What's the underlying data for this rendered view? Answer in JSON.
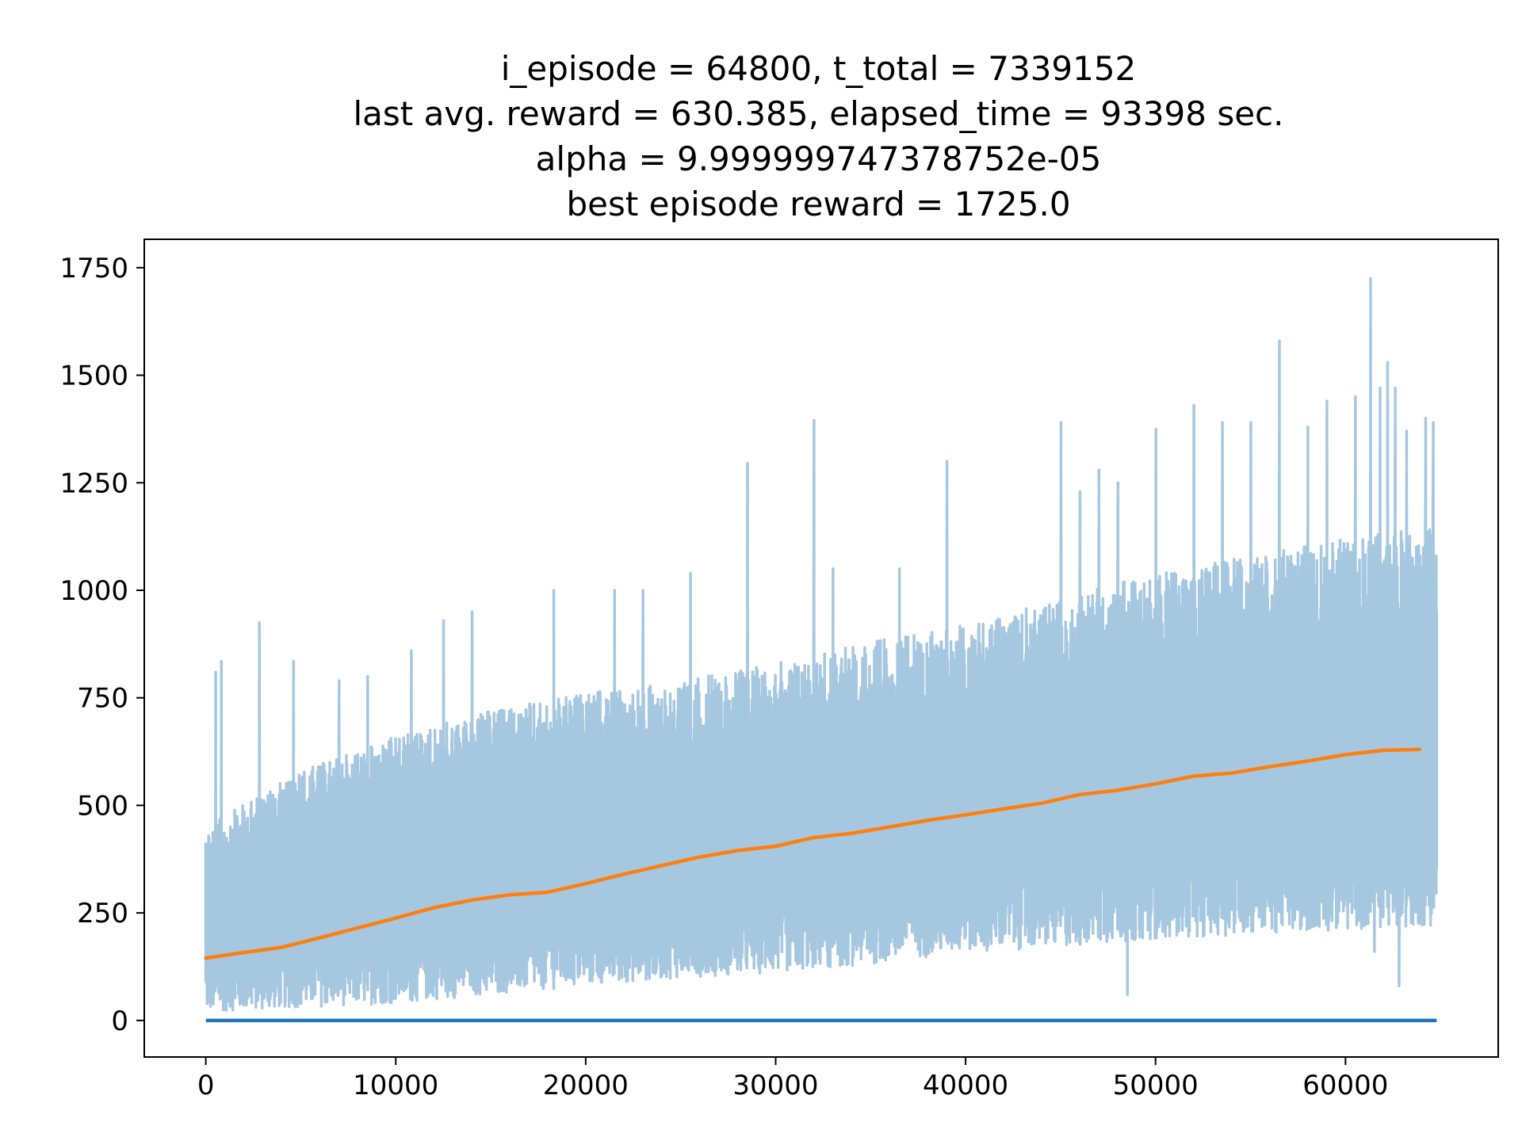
{
  "chart_data": {
    "type": "line",
    "title_lines": [
      "i_episode = 64800, t_total = 7339152",
      "last avg. reward = 630.385, elapsed_time = 93398 sec.",
      "alpha = 9.999999747378752e-05",
      "best episode reward = 1725.0"
    ],
    "xlabel": "",
    "ylabel": "",
    "xlim": [
      -3240,
      68040
    ],
    "ylim": [
      -85,
      1816
    ],
    "x_ticks": [
      0,
      10000,
      20000,
      30000,
      40000,
      50000,
      60000
    ],
    "x_tick_labels": [
      "0",
      "10000",
      "20000",
      "30000",
      "40000",
      "50000",
      "60000"
    ],
    "y_ticks": [
      0,
      250,
      500,
      750,
      1000,
      1250,
      1500,
      1750
    ],
    "y_tick_labels": [
      "0",
      "250",
      "500",
      "750",
      "1000",
      "1250",
      "1500",
      "1750"
    ],
    "grid": false,
    "legend": "none",
    "series": [
      {
        "role": "episode-reward",
        "color": "#a6c7e0",
        "x_range": [
          0,
          64800
        ],
        "lower_envelope": [
          [
            0,
            20
          ],
          [
            5000,
            30
          ],
          [
            10000,
            40
          ],
          [
            15000,
            60
          ],
          [
            20000,
            80
          ],
          [
            25000,
            100
          ],
          [
            30000,
            110
          ],
          [
            35000,
            130
          ],
          [
            40000,
            160
          ],
          [
            45000,
            170
          ],
          [
            50000,
            190
          ],
          [
            55000,
            200
          ],
          [
            60000,
            210
          ],
          [
            64800,
            220
          ]
        ],
        "upper_envelope": [
          [
            0,
            450
          ],
          [
            5000,
            580
          ],
          [
            10000,
            660
          ],
          [
            15000,
            720
          ],
          [
            20000,
            760
          ],
          [
            25000,
            790
          ],
          [
            30000,
            830
          ],
          [
            35000,
            880
          ],
          [
            40000,
            920
          ],
          [
            45000,
            980
          ],
          [
            50000,
            1040
          ],
          [
            55000,
            1080
          ],
          [
            60000,
            1120
          ],
          [
            64800,
            1150
          ]
        ],
        "spikes": [
          [
            500,
            810
          ],
          [
            800,
            835
          ],
          [
            2800,
            925
          ],
          [
            4600,
            835
          ],
          [
            7000,
            790
          ],
          [
            8500,
            800
          ],
          [
            10800,
            860
          ],
          [
            12500,
            930
          ],
          [
            14000,
            950
          ],
          [
            18300,
            1000
          ],
          [
            21500,
            1000
          ],
          [
            23000,
            1000
          ],
          [
            25500,
            1040
          ],
          [
            28500,
            1295
          ],
          [
            32000,
            1395
          ],
          [
            33000,
            1050
          ],
          [
            36500,
            1050
          ],
          [
            39000,
            1300
          ],
          [
            45000,
            1390
          ],
          [
            46000,
            1230
          ],
          [
            47000,
            1280
          ],
          [
            48000,
            1250
          ],
          [
            50000,
            1375
          ],
          [
            52000,
            1430
          ],
          [
            53500,
            1390
          ],
          [
            55000,
            1390
          ],
          [
            56500,
            1580
          ],
          [
            58000,
            1380
          ],
          [
            59000,
            1440
          ],
          [
            60500,
            1450
          ],
          [
            61300,
            1725
          ],
          [
            61800,
            1470
          ],
          [
            62200,
            1530
          ],
          [
            62600,
            1470
          ],
          [
            63200,
            1370
          ],
          [
            64200,
            1400
          ],
          [
            64600,
            1390
          ]
        ],
        "dips": [
          [
            48500,
            60
          ],
          [
            61500,
            160
          ],
          [
            62800,
            80
          ]
        ]
      },
      {
        "role": "average-reward",
        "color": "#ff7f0e",
        "x": [
          0,
          2000,
          4000,
          6000,
          8000,
          10000,
          12000,
          14000,
          16000,
          18000,
          20000,
          22000,
          24000,
          26000,
          28000,
          30000,
          32000,
          34000,
          36000,
          38000,
          40000,
          42000,
          44000,
          46000,
          48000,
          50000,
          52000,
          54000,
          56000,
          58000,
          60000,
          62000,
          63900
        ],
        "values": [
          145,
          158,
          170,
          192,
          215,
          238,
          262,
          280,
          292,
          298,
          318,
          340,
          360,
          380,
          395,
          405,
          425,
          435,
          450,
          465,
          478,
          492,
          505,
          525,
          535,
          550,
          568,
          575,
          590,
          603,
          618,
          628,
          630
        ]
      },
      {
        "role": "baseline",
        "color": "#1f77b4",
        "x": [
          0,
          64800
        ],
        "values": [
          0,
          0
        ]
      }
    ]
  },
  "colors": {
    "axes": "#000000",
    "background": "#ffffff"
  }
}
